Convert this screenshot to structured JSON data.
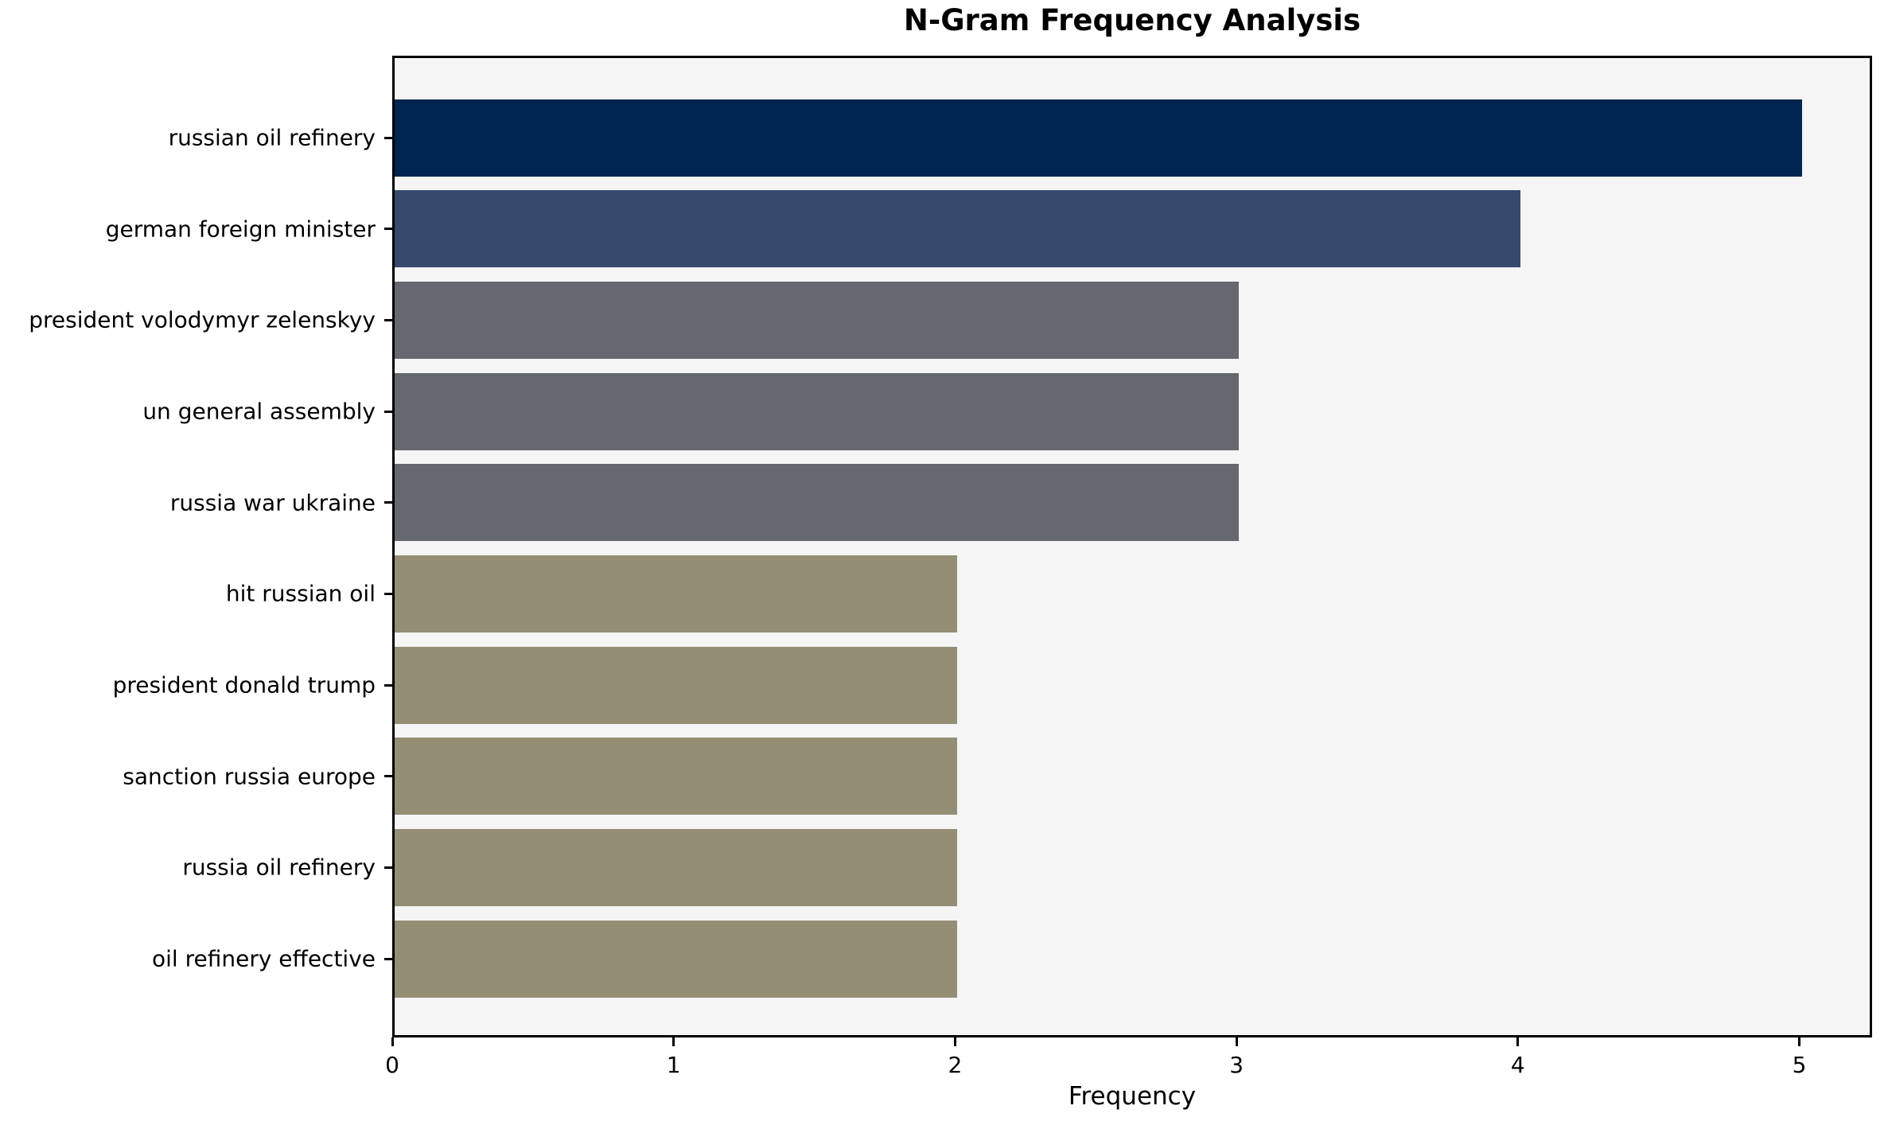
{
  "chart_data": {
    "type": "bar",
    "orientation": "horizontal",
    "title": "N-Gram Frequency Analysis",
    "xlabel": "Frequency",
    "ylabel": "",
    "categories": [
      "russian oil refinery",
      "german foreign minister",
      "president volodymyr zelenskyy",
      "un general assembly",
      "russia war ukraine",
      "hit russian oil",
      "president donald trump",
      "sanction russia europe",
      "russia oil refinery",
      "oil refinery effective"
    ],
    "values": [
      5,
      4,
      3,
      3,
      3,
      2,
      2,
      2,
      2,
      2
    ],
    "bar_colors": [
      "#00254e",
      "#374a6e",
      "#66686f",
      "#66686f",
      "#66686f",
      "#948e75",
      "#948e75",
      "#948e75",
      "#948e75",
      "#948e75"
    ],
    "xlim": [
      0,
      5.25
    ],
    "xticks": [
      "0",
      "1",
      "2",
      "3",
      "4",
      "5"
    ],
    "grid": false,
    "legend_position": "none",
    "plot_background": "#f5f5f6",
    "figure_background": "#ffffff",
    "axis_color": "#000000"
  }
}
